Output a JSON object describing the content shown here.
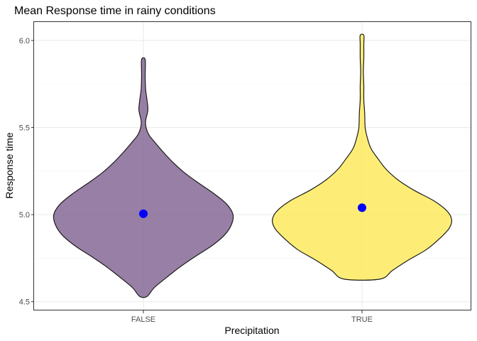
{
  "chart_data": {
    "type": "violin",
    "title": "Mean Response time in rainy conditions",
    "xlabel": "Precipitation",
    "ylabel": "Response time",
    "categories": [
      "FALSE",
      "TRUE"
    ],
    "ylim": [
      4.45,
      6.11
    ],
    "yticks": [
      4.5,
      5.0,
      5.5,
      6.0
    ],
    "ytick_labels": [
      "4.5",
      "5.0",
      "5.5",
      "6.0"
    ],
    "grid": true,
    "legend": "none",
    "colors": {
      "FALSE": "#7b5b8c",
      "TRUE": "#fde84f",
      "mean_point": "#0000ff"
    },
    "fill_opacity": 0.78,
    "series": [
      {
        "category": "FALSE",
        "mean": 5.005,
        "min": 4.53,
        "max": 5.89,
        "density_profile": [
          [
            4.53,
            0.04
          ],
          [
            4.58,
            0.12
          ],
          [
            4.64,
            0.26
          ],
          [
            4.7,
            0.41
          ],
          [
            4.76,
            0.58
          ],
          [
            4.82,
            0.76
          ],
          [
            4.88,
            0.9
          ],
          [
            4.94,
            0.98
          ],
          [
            5.0,
            1.0
          ],
          [
            5.06,
            0.93
          ],
          [
            5.12,
            0.79
          ],
          [
            5.18,
            0.62
          ],
          [
            5.24,
            0.46
          ],
          [
            5.3,
            0.33
          ],
          [
            5.36,
            0.22
          ],
          [
            5.42,
            0.12
          ],
          [
            5.46,
            0.06
          ],
          [
            5.5,
            0.03
          ],
          [
            5.54,
            0.025
          ],
          [
            5.6,
            0.05
          ],
          [
            5.66,
            0.04
          ],
          [
            5.72,
            0.025
          ],
          [
            5.8,
            0.02
          ],
          [
            5.89,
            0.02
          ]
        ]
      },
      {
        "category": "TRUE",
        "mean": 5.04,
        "min": 4.63,
        "max": 6.03,
        "density_profile": [
          [
            4.63,
            0.2
          ],
          [
            4.68,
            0.34
          ],
          [
            4.74,
            0.52
          ],
          [
            4.8,
            0.72
          ],
          [
            4.86,
            0.86
          ],
          [
            4.92,
            0.97
          ],
          [
            4.97,
            1.0
          ],
          [
            5.02,
            0.95
          ],
          [
            5.08,
            0.8
          ],
          [
            5.14,
            0.58
          ],
          [
            5.2,
            0.4
          ],
          [
            5.26,
            0.27
          ],
          [
            5.32,
            0.18
          ],
          [
            5.38,
            0.1
          ],
          [
            5.44,
            0.06
          ],
          [
            5.5,
            0.035
          ],
          [
            5.58,
            0.03
          ],
          [
            5.66,
            0.02
          ],
          [
            5.74,
            0.02
          ],
          [
            5.82,
            0.015
          ],
          [
            5.9,
            0.02
          ],
          [
            5.98,
            0.02
          ],
          [
            6.03,
            0.02
          ]
        ]
      }
    ]
  }
}
